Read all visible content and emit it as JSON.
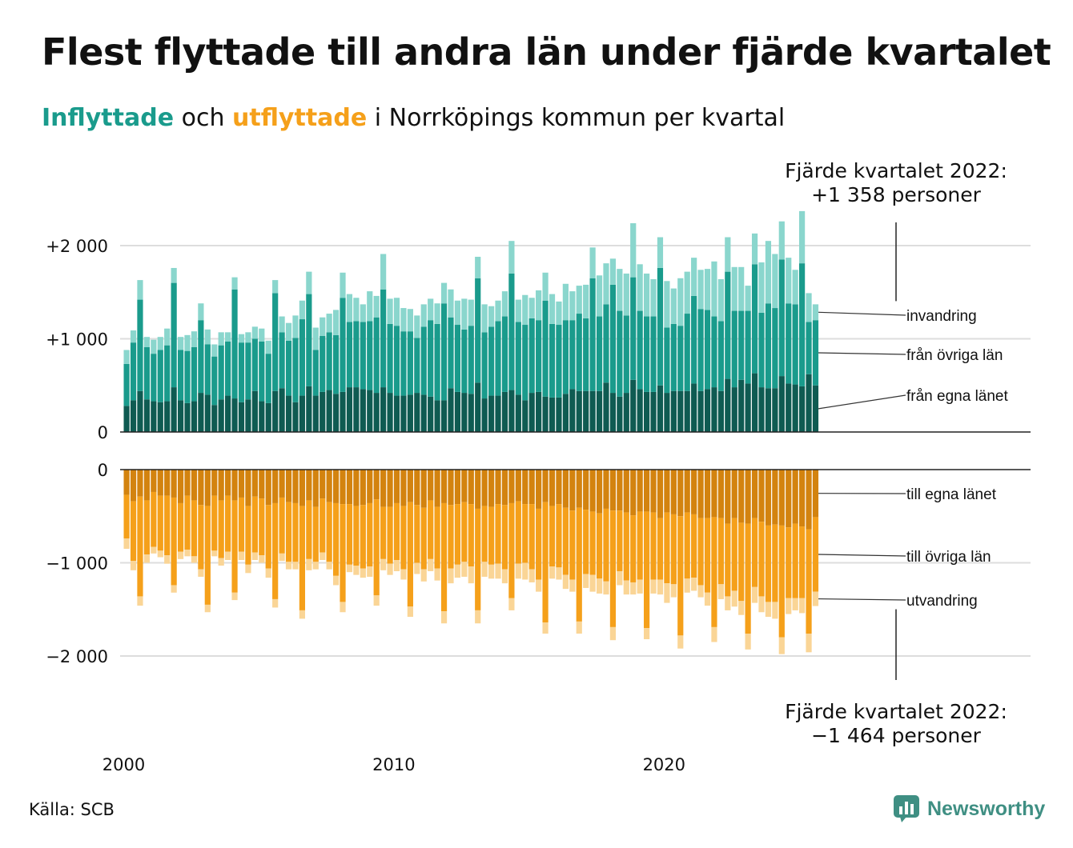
{
  "title": "Flest flyttade till andra län under fjärde kvartalet",
  "subtitle": {
    "in_word": "Inflyttade",
    "mid_word": " och ",
    "out_word": "utflyttade",
    "rest": " i Norrköpings kommun per kvartal"
  },
  "source": "Källa: SCB",
  "logo": {
    "text": "Newsworthy",
    "icon": "newsworthy-chart-icon"
  },
  "colors": {
    "in_own": "#0f5b52",
    "in_other": "#1a9b8c",
    "in_immig": "#8ad6cd",
    "out_own": "#d3830f",
    "out_other": "#f5a01a",
    "out_emig": "#fad596",
    "grid": "#dddddd"
  },
  "chart_data": {
    "type": "bar",
    "stacked": true,
    "x_start": 2000,
    "x_ticks": [
      "2000",
      "2010",
      "2020"
    ],
    "y_ticks_top": [
      "+2 000",
      "+1 000",
      "0"
    ],
    "y_ticks_bottom": [
      "0",
      "−1 000",
      "−2 000"
    ],
    "ylim_top": [
      0,
      2300
    ],
    "ylim_bottom": [
      -2300,
      0
    ],
    "series_in": [
      {
        "name": "från egna länet",
        "values": [
          280,
          340,
          440,
          350,
          330,
          320,
          330,
          480,
          340,
          310,
          330,
          420,
          400,
          290,
          350,
          390,
          360,
          320,
          350,
          440,
          330,
          310,
          440,
          470,
          390,
          320,
          390,
          490,
          390,
          430,
          450,
          410,
          430,
          480,
          480,
          460,
          450,
          420,
          480,
          420,
          390,
          390,
          400,
          420,
          400,
          380,
          340,
          340,
          470,
          430,
          420,
          410,
          530,
          360,
          390,
          390,
          430,
          450,
          400,
          340,
          420,
          430,
          380,
          370,
          370,
          410,
          460,
          440,
          440,
          440,
          440,
          530,
          420,
          380,
          420,
          560,
          460,
          430,
          430,
          500,
          420,
          440,
          440,
          440,
          520,
          440,
          460,
          480,
          440,
          570,
          480,
          560,
          520,
          630,
          480,
          470,
          470,
          600,
          520,
          510,
          490,
          620,
          500
        ]
      },
      {
        "name": "från övriga län",
        "values": [
          450,
          620,
          980,
          560,
          510,
          560,
          600,
          1120,
          540,
          560,
          580,
          780,
          540,
          520,
          580,
          580,
          1170,
          640,
          610,
          560,
          640,
          530,
          1050,
          600,
          590,
          690,
          820,
          990,
          490,
          600,
          620,
          630,
          1010,
          700,
          710,
          720,
          740,
          810,
          1050,
          740,
          750,
          690,
          680,
          590,
          730,
          820,
          820,
          1040,
          760,
          720,
          680,
          730,
          1120,
          710,
          740,
          800,
          810,
          1250,
          780,
          810,
          800,
          770,
          1030,
          790,
          780,
          790,
          740,
          830,
          780,
          1210,
          800,
          840,
          1160,
          920,
          830,
          1100,
          840,
          810,
          810,
          1260,
          700,
          720,
          700,
          830,
          940,
          880,
          850,
          760,
          750,
          1150,
          820,
          740,
          780,
          1170,
          800,
          910,
          860,
          1250,
          860,
          860,
          1320,
          560,
          700
        ]
      },
      {
        "name": "invandring",
        "values": [
          150,
          130,
          210,
          110,
          150,
          140,
          180,
          160,
          140,
          170,
          170,
          180,
          160,
          130,
          140,
          100,
          130,
          90,
          110,
          130,
          140,
          140,
          140,
          170,
          190,
          240,
          200,
          240,
          240,
          200,
          200,
          270,
          270,
          300,
          250,
          190,
          320,
          230,
          380,
          270,
          300,
          250,
          240,
          240,
          240,
          230,
          220,
          220,
          300,
          260,
          330,
          280,
          230,
          300,
          220,
          220,
          270,
          350,
          240,
          320,
          220,
          320,
          300,
          320,
          250,
          390,
          310,
          300,
          360,
          330,
          440,
          440,
          280,
          450,
          450,
          580,
          500,
          460,
          400,
          330,
          500,
          380,
          510,
          450,
          410,
          420,
          440,
          590,
          450,
          370,
          470,
          470,
          270,
          330,
          540,
          670,
          580,
          410,
          490,
          370,
          560,
          310,
          170
        ]
      }
    ],
    "series_out": [
      {
        "name": "till egna länet",
        "values": [
          -270,
          -340,
          -290,
          -330,
          -240,
          -280,
          -280,
          -300,
          -360,
          -280,
          -330,
          -380,
          -390,
          -280,
          -330,
          -280,
          -330,
          -300,
          -390,
          -290,
          -310,
          -380,
          -360,
          -300,
          -350,
          -360,
          -390,
          -330,
          -400,
          -310,
          -350,
          -360,
          -370,
          -370,
          -390,
          -380,
          -360,
          -320,
          -400,
          -400,
          -360,
          -390,
          -350,
          -380,
          -410,
          -330,
          -400,
          -360,
          -380,
          -370,
          -350,
          -370,
          -420,
          -390,
          -400,
          -370,
          -380,
          -360,
          -340,
          -370,
          -370,
          -420,
          -350,
          -390,
          -370,
          -410,
          -440,
          -410,
          -430,
          -450,
          -470,
          -420,
          -440,
          -440,
          -460,
          -490,
          -450,
          -450,
          -460,
          -520,
          -460,
          -480,
          -500,
          -460,
          -480,
          -520,
          -520,
          -510,
          -520,
          -580,
          -520,
          -570,
          -580,
          -520,
          -560,
          -600,
          -590,
          -600,
          -620,
          -580,
          -610,
          -640,
          -510
        ]
      },
      {
        "name": "till övriga län",
        "values": [
          -470,
          -640,
          -1070,
          -580,
          -590,
          -590,
          -640,
          -940,
          -520,
          -580,
          -600,
          -690,
          -1060,
          -590,
          -620,
          -600,
          -990,
          -580,
          -630,
          -600,
          -610,
          -680,
          -1030,
          -600,
          -640,
          -630,
          -1120,
          -630,
          -590,
          -580,
          -640,
          -780,
          -1050,
          -650,
          -640,
          -680,
          -680,
          -1030,
          -560,
          -610,
          -610,
          -680,
          -1120,
          -620,
          -660,
          -630,
          -660,
          -1160,
          -680,
          -650,
          -640,
          -670,
          -1090,
          -600,
          -620,
          -640,
          -690,
          -1020,
          -670,
          -630,
          -700,
          -760,
          -1290,
          -650,
          -680,
          -720,
          -740,
          -1220,
          -690,
          -680,
          -700,
          -780,
          -1250,
          -650,
          -730,
          -720,
          -730,
          -1250,
          -720,
          -660,
          -760,
          -750,
          -1280,
          -710,
          -680,
          -720,
          -800,
          -1180,
          -710,
          -780,
          -780,
          -840,
          -1180,
          -740,
          -800,
          -820,
          -830,
          -1200,
          -760,
          -800,
          -770,
          -1120,
          -800
        ]
      },
      {
        "name": "utvandring",
        "values": [
          -110,
          -100,
          -100,
          -90,
          -70,
          -70,
          -90,
          -80,
          -80,
          -70,
          -70,
          -80,
          -80,
          -60,
          -80,
          -90,
          -80,
          -90,
          -90,
          -80,
          -80,
          -100,
          -90,
          -80,
          -80,
          -80,
          -90,
          -120,
          -80,
          -80,
          -80,
          -100,
          -110,
          -80,
          -100,
          -100,
          -110,
          -110,
          -120,
          -120,
          -120,
          -110,
          -110,
          -120,
          -130,
          -130,
          -130,
          -130,
          -160,
          -140,
          -160,
          -180,
          -140,
          -160,
          -150,
          -160,
          -150,
          -130,
          -160,
          -180,
          -140,
          -130,
          -120,
          -130,
          -130,
          -150,
          -130,
          -130,
          -150,
          -180,
          -160,
          -140,
          -140,
          -150,
          -150,
          -130,
          -150,
          -120,
          -150,
          -160,
          -210,
          -140,
          -140,
          -150,
          -140,
          -130,
          -140,
          -160,
          -160,
          -150,
          -170,
          -150,
          -170,
          -170,
          -170,
          -160,
          -180,
          -180,
          -170,
          -130,
          -160,
          -200,
          -154
        ]
      }
    ],
    "series_labels_in": [
      "invandring",
      "från övriga län",
      "från egna länet"
    ],
    "series_labels_out": [
      "till egna länet",
      "till övriga län",
      "utvandring"
    ],
    "annotation_top": [
      "Fjärde kvartalet 2022:",
      "+1 358 personer"
    ],
    "annotation_bottom": [
      "Fjärde kvartalet 2022:",
      "−1 464 personer"
    ]
  }
}
